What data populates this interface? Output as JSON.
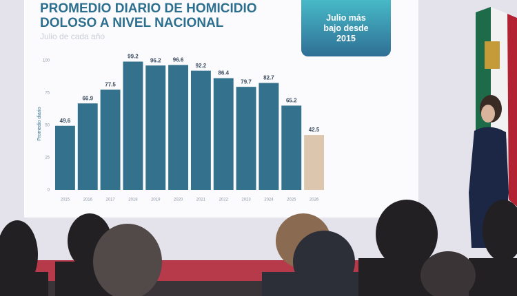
{
  "chart_data": {
    "type": "bar",
    "title": "PROMEDIO DIARIO DE HOMICIDIO DOLOSO A NIVEL NACIONAL",
    "subtitle": "Julio de cada año",
    "annotation": "Julio más bajo desde 2015",
    "y_label": "Promedio diario",
    "categories": [
      "2015",
      "2016",
      "2017",
      "2018",
      "2019",
      "2020",
      "2021",
      "2022",
      "2023",
      "2024",
      "2025",
      "2026"
    ],
    "values": [
      49.6,
      66.9,
      77.5,
      99.2,
      96.2,
      96.6,
      92.2,
      86.4,
      79.7,
      82.7,
      65.2,
      42.5
    ],
    "colors": [
      "#33718d",
      "#33718d",
      "#33718d",
      "#33718d",
      "#33718d",
      "#33718d",
      "#33718d",
      "#33718d",
      "#33718d",
      "#33718d",
      "#33718d",
      "#dcc7ae"
    ],
    "ylim": [
      0,
      100
    ],
    "yticks": [
      0,
      25,
      50,
      75,
      100
    ],
    "grid": false
  }
}
